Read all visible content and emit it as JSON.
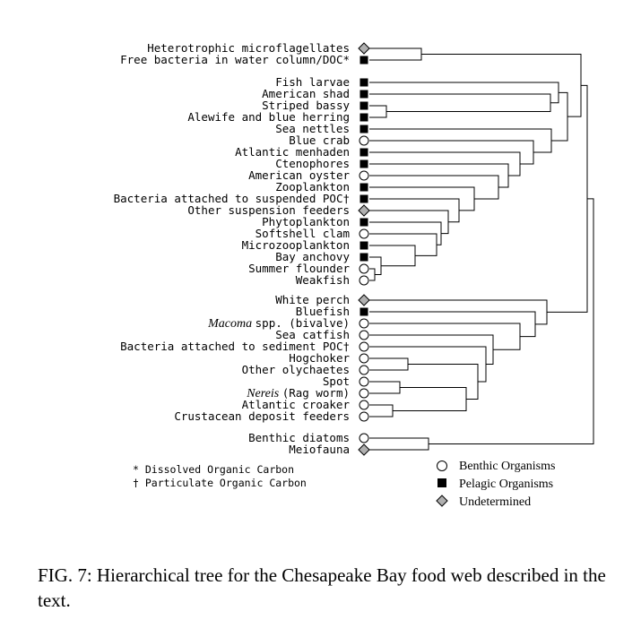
{
  "diagram": {
    "leaves": [
      {
        "label": "Heterotrophic microflagellates",
        "type": "undetermined"
      },
      {
        "label": "Free bacteria in water column/DOC*",
        "type": "pelagic"
      },
      {
        "label": "Fish larvae",
        "type": "pelagic"
      },
      {
        "label": "American shad",
        "type": "pelagic"
      },
      {
        "label": "Striped bassy",
        "type": "pelagic"
      },
      {
        "label": "Alewife and blue herring",
        "type": "pelagic"
      },
      {
        "label": "Sea nettles",
        "type": "pelagic"
      },
      {
        "label": "Blue crab",
        "type": "benthic"
      },
      {
        "label": "Atlantic menhaden",
        "type": "pelagic"
      },
      {
        "label": "Ctenophores",
        "type": "pelagic"
      },
      {
        "label": "American oyster",
        "type": "benthic"
      },
      {
        "label": "Zooplankton",
        "type": "pelagic"
      },
      {
        "label": "Bacteria attached to suspended POC†",
        "type": "pelagic"
      },
      {
        "label": "Other suspension feeders",
        "type": "undetermined"
      },
      {
        "label": "Phytoplankton",
        "type": "pelagic"
      },
      {
        "label": "Softshell clam",
        "type": "benthic"
      },
      {
        "label": "Microzooplankton",
        "type": "pelagic"
      },
      {
        "label": "Bay anchovy",
        "type": "pelagic"
      },
      {
        "label": "Summer flounder",
        "type": "benthic"
      },
      {
        "label": "Weakfish",
        "type": "benthic"
      },
      {
        "label": "White perch",
        "type": "undetermined"
      },
      {
        "label": "Bluefish",
        "type": "pelagic"
      },
      {
        "label": "spp. (bivalve)",
        "italic": "Macoma",
        "type": "benthic"
      },
      {
        "label": "Sea catfish",
        "type": "benthic"
      },
      {
        "label": "Bacteria attached to sediment POC†",
        "type": "benthic"
      },
      {
        "label": "Hogchoker",
        "type": "benthic"
      },
      {
        "label": "Other olychaetes",
        "type": "benthic"
      },
      {
        "label": "Spot",
        "type": "benthic"
      },
      {
        "label": "(Rag worm)",
        "italic": "Nereis",
        "type": "benthic"
      },
      {
        "label": "Atlantic croaker",
        "type": "benthic"
      },
      {
        "label": "Crustacean deposit feeders",
        "type": "benthic"
      },
      {
        "label": "Benthic diatoms",
        "type": "benthic"
      },
      {
        "label": "Meiofauna",
        "type": "undetermined"
      }
    ],
    "footnotes": {
      "doc": "* Dissolved Organic Carbon",
      "poc": "† Particulate Organic Carbon"
    },
    "legend": {
      "benthic": "Benthic Organisms",
      "pelagic": "Pelagic Organisms",
      "undetermined": "Undetermined"
    },
    "colors": {
      "pelagic": "#000000",
      "benthic": "#ffffff",
      "undetermined": "#b0b0b0"
    }
  },
  "caption": "FIG. 7: Hierarchical tree for the Chesapeake Bay food web described in the text."
}
